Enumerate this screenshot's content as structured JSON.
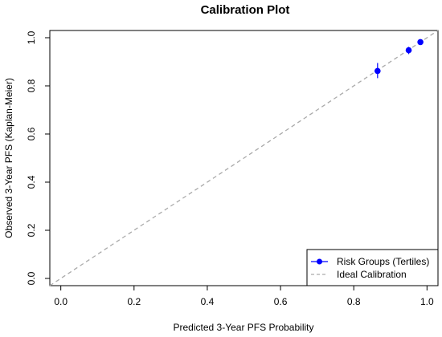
{
  "chart_data": {
    "type": "scatter",
    "title": "Calibration Plot",
    "xlabel": "Predicted 3-Year PFS Probability",
    "ylabel": "Observed 3-Year PFS (Kaplan-Meier)",
    "xlim": [
      -0.03,
      1.03
    ],
    "ylim": [
      -0.03,
      1.03
    ],
    "x_ticks": [
      "0.0",
      "0.2",
      "0.4",
      "0.6",
      "0.8",
      "1.0"
    ],
    "y_ticks": [
      "0.0",
      "0.2",
      "0.4",
      "0.6",
      "0.8",
      "1.0"
    ],
    "grid": false,
    "legend": {
      "position": "bottom-right",
      "entries": [
        "Risk Groups (Tertiles)",
        "Ideal Calibration"
      ]
    },
    "series": [
      {
        "name": "Risk Groups (Tertiles)",
        "color": "#0000ff",
        "points": [
          {
            "x": 0.865,
            "y": 0.862,
            "lower": 0.832,
            "upper": 0.895
          },
          {
            "x": 0.95,
            "y": 0.948,
            "lower": 0.932,
            "upper": 0.962
          },
          {
            "x": 0.982,
            "y": 0.982,
            "lower": 0.972,
            "upper": 0.991
          }
        ]
      },
      {
        "name": "Ideal Calibration",
        "color": "#aaaaaa",
        "line": [
          [
            -0.03,
            -0.03
          ],
          [
            1.03,
            1.03
          ]
        ]
      }
    ]
  }
}
